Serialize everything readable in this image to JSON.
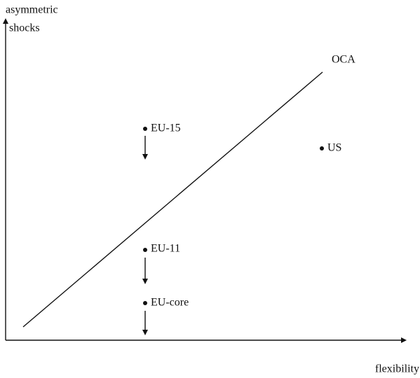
{
  "axes": {
    "y_label_lines": [
      "asymmetric",
      "shocks"
    ],
    "x_label": "flexibility"
  },
  "line": {
    "label": "OCA"
  },
  "points": [
    {
      "label": "EU-15"
    },
    {
      "label": "US"
    },
    {
      "label": "EU-11"
    },
    {
      "label": "EU-core"
    }
  ]
}
